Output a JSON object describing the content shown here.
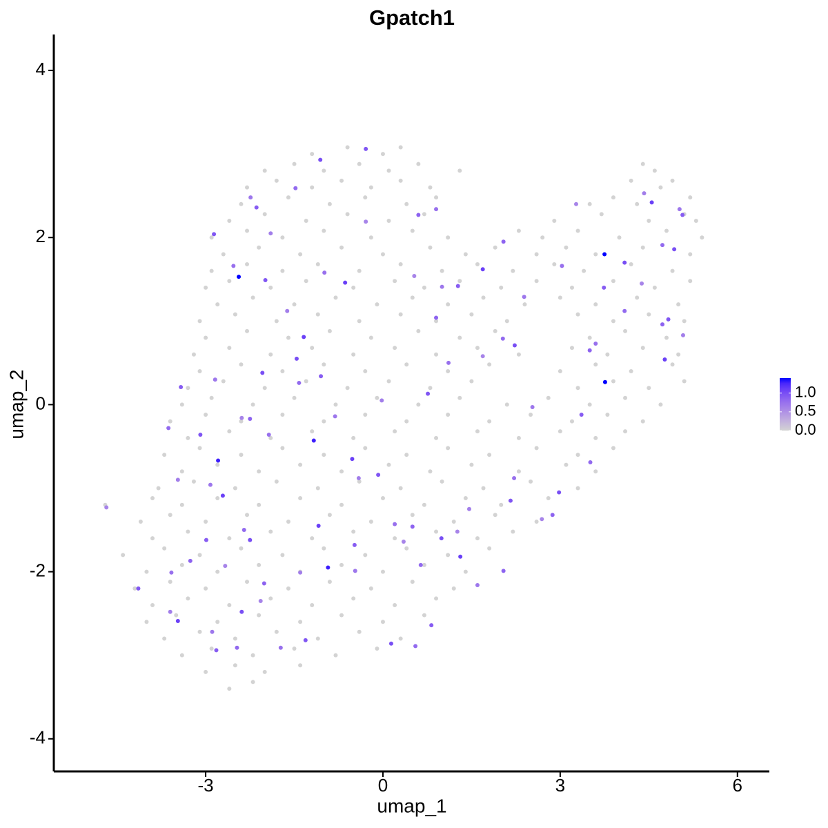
{
  "chart_data": {
    "type": "scatter",
    "title": "Gpatch1",
    "x_label": "umap_1",
    "y_label": "umap_2",
    "xlim": [
      -5.57,
      6.54
    ],
    "xticks": [
      -3,
      0,
      3,
      6
    ],
    "ylim": [
      -4.39,
      4.43
    ],
    "yticks": [
      -4,
      -2,
      0,
      2,
      4
    ],
    "color_low": "#d3d3d3",
    "color_high": "#0000ff",
    "colorbar_lim": [
      0,
      1.4
    ],
    "colorbar_ticks": [
      {
        "value": 0,
        "label": "0.0"
      },
      {
        "value": 0.5,
        "label": "0.5"
      },
      {
        "value": 1,
        "label": "1.0"
      }
    ],
    "x": [
      -1.2,
      -0.6,
      0.0,
      0.3,
      -2.0,
      -1.5,
      -1.0,
      -0.4,
      0.1,
      0.6,
      1.3,
      4.4,
      4.6,
      -2.3,
      -1.8,
      -1.2,
      -0.7,
      -0.2,
      0.3,
      0.8,
      4.2,
      4.7,
      4.9,
      -2.4,
      -1.6,
      -0.9,
      -0.3,
      0.4,
      0.9,
      3.5,
      3.9,
      4.3,
      5.2,
      -2.6,
      -2.0,
      -1.3,
      -0.6,
      0.1,
      0.7,
      2.9,
      3.7,
      4.5,
      5.1,
      5.3,
      -2.9,
      -2.3,
      -1.7,
      -1.0,
      -0.2,
      0.5,
      1.1,
      2.3,
      2.7,
      3.3,
      4.0,
      4.8,
      5.4,
      -2.7,
      -2.1,
      -1.4,
      -0.7,
      0.0,
      0.8,
      1.4,
      1.9,
      2.6,
      3.1,
      3.6,
      4.4,
      5.2,
      -2.9,
      -2.3,
      -1.7,
      -1.1,
      -0.4,
      0.3,
      1.0,
      1.6,
      2.2,
      2.9,
      3.4,
      4.2,
      4.9,
      -3.0,
      -2.6,
      -1.9,
      -1.3,
      -0.5,
      0.2,
      0.7,
      1.3,
      2.0,
      2.6,
      3.2,
      3.9,
      4.6,
      5.2,
      -2.8,
      -2.2,
      -1.5,
      -0.8,
      -0.1,
      0.5,
      1.1,
      1.7,
      2.4,
      3.0,
      3.6,
      4.3,
      5.0,
      -3.1,
      -2.5,
      -1.8,
      -1.1,
      -0.4,
      0.3,
      0.9,
      1.5,
      2.1,
      3.3,
      3.9,
      4.5,
      5.1,
      -3.0,
      -2.3,
      -1.6,
      -0.9,
      -0.2,
      0.6,
      1.3,
      1.9,
      3.5,
      4.1,
      4.8,
      -3.2,
      -2.6,
      -1.9,
      -1.2,
      -0.5,
      0.2,
      0.9,
      1.6,
      2.3,
      3.2,
      3.8,
      4.4,
      5.0,
      -3.1,
      -2.4,
      -1.7,
      -1.0,
      -0.3,
      0.4,
      1.1,
      1.8,
      3.0,
      3.6,
      4.2,
      4.9,
      -3.3,
      -2.7,
      -2.0,
      -1.3,
      -0.6,
      0.1,
      0.8,
      1.5,
      3.3,
      3.9,
      4.5,
      5.1,
      -3.4,
      -2.9,
      -2.2,
      -1.5,
      -0.8,
      -0.1,
      0.6,
      1.3,
      2.1,
      2.8,
      3.5,
      4.1,
      4.7,
      -3.6,
      -3.0,
      -2.4,
      -1.7,
      -1.0,
      -0.3,
      0.4,
      1.1,
      1.8,
      2.5,
      3.2,
      3.8,
      4.4,
      -3.3,
      -2.6,
      -1.9,
      -1.2,
      -0.5,
      0.2,
      0.9,
      1.6,
      2.3,
      3.0,
      3.6,
      4.1,
      -3.7,
      -3.1,
      -2.4,
      -1.7,
      -1.0,
      -0.3,
      0.4,
      1.1,
      1.8,
      2.6,
      3.3,
      3.9,
      -3.4,
      -2.8,
      -2.1,
      -1.4,
      -0.7,
      0.1,
      0.8,
      1.5,
      2.3,
      3.1,
      3.6,
      -3.8,
      -3.2,
      -2.5,
      -1.8,
      -1.1,
      -0.4,
      0.3,
      1.0,
      1.7,
      2.5,
      3.3,
      -4.7,
      -3.9,
      -3.4,
      -2.8,
      -2.1,
      -1.4,
      -0.7,
      0.0,
      0.7,
      1.4,
      2.0,
      2.8,
      -4.1,
      -3.6,
      -3.0,
      -2.3,
      -1.6,
      -0.9,
      -0.2,
      0.5,
      1.2,
      1.9,
      2.6,
      -3.9,
      -3.3,
      -2.6,
      -1.9,
      -1.2,
      -0.5,
      0.2,
      0.9,
      1.6,
      2.2,
      -4.4,
      -3.7,
      -3.1,
      -2.4,
      -1.7,
      -1.0,
      -0.3,
      0.4,
      1.1,
      1.8,
      -4.0,
      -3.4,
      -2.8,
      -2.1,
      -1.4,
      -0.7,
      0.0,
      0.7,
      1.4,
      -4.2,
      -3.6,
      -3.0,
      -2.3,
      -1.6,
      -0.9,
      -0.2,
      0.5,
      1.2,
      -3.9,
      -3.3,
      -2.6,
      -1.9,
      -1.2,
      -0.5,
      0.2,
      0.9,
      -4.0,
      -3.5,
      -2.8,
      -2.1,
      -1.4,
      -0.7,
      0.0,
      0.7,
      -3.7,
      -3.1,
      -2.5,
      -1.8,
      -1.1,
      -0.4,
      0.3,
      -3.4,
      -2.9,
      -2.2,
      -1.5,
      -0.8,
      -0.1,
      -3.0,
      -2.5,
      -2.0,
      -1.4,
      -2.6,
      -2.2,
      -2.24,
      -2.14,
      -1.48,
      -1.06,
      -0.29,
      0.6,
      0.9,
      -0.29,
      4.42,
      4.55,
      5.02,
      5.07,
      4.73,
      4.93,
      3.27,
      2.04,
      -2.53,
      -2.86,
      -1.9,
      -0.64,
      1.0,
      1.27,
      2.03,
      2.23,
      1.69,
      3.5,
      3.6,
      4.83,
      5.08,
      4.77,
      2.53,
      3.36,
      3.51,
      2.98,
      2.69,
      2.87,
      2.22,
      2.16,
      1.46,
      1.31,
      1.6,
      0.82,
      0.55,
      0.14,
      0.35,
      0.5,
      0.2,
      -0.08,
      -0.41,
      -0.52,
      -0.81,
      -1.05,
      -1.42,
      -1.46,
      -2.39,
      -2.25,
      -1.93,
      -3.09,
      -3.47,
      -2.71,
      -2.92,
      -2.99,
      -2.35,
      -2.25,
      -2.67,
      -3.26,
      -3.58,
      -4.14,
      -3.6,
      -3.47,
      -2.89,
      -2.82,
      -2.47,
      -2.39,
      -2.07,
      -2.01,
      -1.73,
      -1.31,
      -1.4,
      -1.09,
      -0.47,
      -0.48,
      0.64,
      0.99,
      1.26,
      2.04,
      -0.99,
      -1.99,
      -1.62,
      -1.34,
      -2.84,
      -3.42,
      -3.63,
      -2.04,
      0.53,
      0.9,
      1.11,
      0.76,
      -0.02,
      1.69,
      2.39,
      3.74,
      4.09,
      4.09,
      4.38,
      4.73,
      3.03,
      -4.68,
      -1.17,
      -2.79,
      -0.93,
      -2.44,
      3.75,
      3.76
    ],
    "y": [
      3.0,
      3.08,
      3.0,
      3.08,
      2.8,
      2.88,
      2.8,
      2.88,
      2.8,
      2.88,
      2.8,
      2.88,
      2.8,
      2.6,
      2.68,
      2.6,
      2.68,
      2.6,
      2.68,
      2.6,
      2.68,
      2.6,
      2.68,
      2.4,
      2.48,
      2.4,
      2.48,
      2.4,
      2.48,
      2.4,
      2.48,
      2.4,
      2.48,
      2.2,
      2.28,
      2.2,
      2.28,
      2.2,
      2.28,
      2.2,
      2.28,
      2.2,
      2.28,
      2.2,
      2.0,
      2.08,
      2.0,
      2.08,
      2.0,
      2.08,
      2.0,
      2.08,
      2.0,
      2.08,
      2.0,
      2.08,
      2.0,
      1.8,
      1.88,
      1.8,
      1.88,
      1.8,
      1.88,
      1.8,
      1.88,
      1.8,
      1.88,
      1.8,
      1.88,
      1.8,
      1.6,
      1.68,
      1.6,
      1.68,
      1.6,
      1.68,
      1.6,
      1.68,
      1.6,
      1.68,
      1.6,
      1.68,
      1.6,
      1.4,
      1.48,
      1.4,
      1.48,
      1.4,
      1.48,
      1.4,
      1.48,
      1.4,
      1.48,
      1.4,
      1.48,
      1.4,
      1.48,
      1.2,
      1.28,
      1.2,
      1.28,
      1.2,
      1.28,
      1.2,
      1.28,
      1.2,
      1.28,
      1.2,
      1.28,
      1.2,
      1.0,
      1.08,
      1.0,
      1.08,
      1.0,
      1.08,
      1.0,
      1.08,
      1.0,
      1.08,
      1.0,
      1.08,
      1.0,
      0.8,
      0.88,
      0.8,
      0.88,
      0.8,
      0.88,
      0.8,
      0.88,
      0.8,
      0.88,
      0.8,
      0.6,
      0.68,
      0.6,
      0.68,
      0.6,
      0.68,
      0.6,
      0.68,
      0.6,
      0.68,
      0.6,
      0.68,
      0.6,
      0.4,
      0.48,
      0.4,
      0.48,
      0.4,
      0.48,
      0.4,
      0.48,
      0.4,
      0.48,
      0.4,
      0.48,
      0.2,
      0.28,
      0.2,
      0.28,
      0.2,
      0.28,
      0.2,
      0.28,
      0.2,
      0.28,
      0.2,
      0.28,
      0.0,
      0.08,
      0.0,
      0.08,
      0.0,
      0.08,
      0.0,
      0.08,
      0.0,
      0.08,
      0.0,
      0.08,
      0.0,
      -0.2,
      -0.12,
      -0.2,
      -0.12,
      -0.2,
      -0.12,
      -0.2,
      -0.12,
      -0.2,
      -0.12,
      -0.2,
      -0.12,
      -0.2,
      -0.4,
      -0.32,
      -0.4,
      -0.32,
      -0.4,
      -0.32,
      -0.4,
      -0.32,
      -0.4,
      -0.32,
      -0.4,
      -0.32,
      -0.6,
      -0.52,
      -0.6,
      -0.52,
      -0.6,
      -0.52,
      -0.6,
      -0.52,
      -0.6,
      -0.52,
      -0.6,
      -0.52,
      -0.8,
      -0.72,
      -0.8,
      -0.72,
      -0.8,
      -0.72,
      -0.8,
      -0.72,
      -0.8,
      -0.72,
      -0.8,
      -1.0,
      -0.92,
      -1.0,
      -0.92,
      -1.0,
      -0.92,
      -1.0,
      -0.92,
      -1.0,
      -0.92,
      -1.0,
      -1.2,
      -1.12,
      -1.2,
      -1.12,
      -1.2,
      -1.12,
      -1.2,
      -1.12,
      -1.2,
      -1.12,
      -1.2,
      -1.12,
      -1.4,
      -1.32,
      -1.4,
      -1.32,
      -1.4,
      -1.32,
      -1.4,
      -1.32,
      -1.4,
      -1.32,
      -1.4,
      -1.6,
      -1.52,
      -1.6,
      -1.52,
      -1.6,
      -1.52,
      -1.6,
      -1.52,
      -1.6,
      -1.52,
      -1.8,
      -1.72,
      -1.8,
      -1.72,
      -1.8,
      -1.72,
      -1.8,
      -1.72,
      -1.8,
      -1.72,
      -2.0,
      -1.92,
      -2.0,
      -1.92,
      -2.0,
      -1.92,
      -2.0,
      -1.92,
      -2.0,
      -2.2,
      -2.12,
      -2.2,
      -2.12,
      -2.2,
      -2.12,
      -2.2,
      -2.12,
      -2.2,
      -2.4,
      -2.32,
      -2.4,
      -2.32,
      -2.4,
      -2.32,
      -2.4,
      -2.32,
      -2.6,
      -2.52,
      -2.6,
      -2.52,
      -2.6,
      -2.52,
      -2.6,
      -2.52,
      -2.8,
      -2.72,
      -2.8,
      -2.72,
      -2.8,
      -2.72,
      -2.8,
      -3.0,
      -2.92,
      -3.0,
      -2.92,
      -3.0,
      -2.92,
      -3.2,
      -3.12,
      -3.2,
      -3.12,
      -3.4,
      -3.32,
      2.48,
      2.36,
      2.59,
      2.93,
      2.19,
      2.27,
      2.34,
      3.06,
      2.53,
      2.42,
      2.34,
      2.27,
      1.91,
      1.86,
      2.4,
      1.95,
      1.66,
      2.04,
      2.05,
      1.46,
      1.41,
      1.42,
      0.79,
      0.71,
      0.58,
      0.65,
      0.73,
      1.02,
      0.83,
      0.54,
      -0.03,
      -0.12,
      -0.69,
      -1.05,
      -1.37,
      -1.32,
      -0.88,
      -1.15,
      -1.25,
      -1.82,
      -2.16,
      -2.64,
      -2.89,
      -2.86,
      -1.64,
      -1.46,
      -1.43,
      -0.84,
      -0.88,
      -0.65,
      -0.14,
      0.34,
      0.26,
      0.55,
      -0.16,
      -0.17,
      -0.36,
      -0.36,
      -0.9,
      -1.09,
      -0.96,
      -1.62,
      -1.5,
      -1.62,
      -1.93,
      -1.87,
      -2.01,
      -2.2,
      -2.48,
      -2.59,
      -2.72,
      -2.94,
      -2.91,
      -2.48,
      -2.35,
      -2.14,
      -2.91,
      -2.82,
      -2.01,
      -1.45,
      -1.99,
      -1.68,
      -1.92,
      -1.6,
      -1.52,
      -1.99,
      1.58,
      1.49,
      1.12,
      0.81,
      0.3,
      0.21,
      -0.28,
      0.38,
      1.54,
      1.04,
      0.5,
      0.13,
      0.05,
      1.62,
      1.29,
      1.4,
      1.12,
      1.7,
      1.45,
      0.96,
      1.66,
      -1.23,
      -0.43,
      -0.67,
      -1.95,
      1.53,
      1.8,
      0.27
    ],
    "values": [
      0,
      0,
      0,
      0,
      0,
      0,
      0,
      0,
      0,
      0,
      0,
      0,
      0,
      0,
      0,
      0,
      0,
      0,
      0,
      0,
      0,
      0,
      0,
      0,
      0,
      0,
      0,
      0,
      0,
      0,
      0,
      0,
      0,
      0,
      0,
      0,
      0,
      0,
      0,
      0,
      0,
      0,
      0,
      0,
      0,
      0,
      0,
      0,
      0,
      0,
      0,
      0,
      0,
      0,
      0,
      0,
      0,
      0,
      0,
      0,
      0,
      0,
      0,
      0,
      0,
      0,
      0,
      0,
      0,
      0,
      0,
      0,
      0,
      0,
      0,
      0,
      0,
      0,
      0,
      0,
      0,
      0,
      0,
      0,
      0,
      0,
      0,
      0,
      0,
      0,
      0,
      0,
      0,
      0,
      0,
      0,
      0,
      0,
      0,
      0,
      0,
      0,
      0,
      0,
      0,
      0,
      0,
      0,
      0,
      0,
      0,
      0,
      0,
      0,
      0,
      0,
      0,
      0,
      0,
      0,
      0,
      0,
      0,
      0,
      0,
      0,
      0,
      0,
      0,
      0,
      0,
      0,
      0,
      0,
      0,
      0,
      0,
      0,
      0,
      0,
      0,
      0,
      0,
      0,
      0,
      0,
      0,
      0,
      0,
      0,
      0,
      0,
      0,
      0,
      0,
      0,
      0,
      0,
      0,
      0,
      0,
      0,
      0,
      0,
      0,
      0,
      0,
      0,
      0,
      0,
      0,
      0,
      0,
      0,
      0,
      0,
      0,
      0,
      0,
      0,
      0,
      0,
      0,
      0,
      0,
      0,
      0,
      0,
      0,
      0,
      0,
      0,
      0,
      0,
      0,
      0,
      0,
      0,
      0,
      0,
      0,
      0,
      0,
      0,
      0,
      0,
      0,
      0,
      0,
      0,
      0,
      0,
      0,
      0,
      0,
      0,
      0,
      0,
      0,
      0,
      0,
      0,
      0,
      0,
      0,
      0,
      0,
      0,
      0,
      0,
      0,
      0,
      0,
      0,
      0,
      0,
      0,
      0,
      0,
      0,
      0,
      0,
      0,
      0,
      0,
      0,
      0,
      0,
      0,
      0,
      0,
      0,
      0,
      0,
      0,
      0,
      0,
      0,
      0,
      0,
      0,
      0,
      0,
      0,
      0,
      0,
      0,
      0,
      0,
      0,
      0,
      0,
      0,
      0,
      0,
      0,
      0,
      0,
      0,
      0,
      0,
      0,
      0,
      0,
      0,
      0,
      0,
      0,
      0,
      0,
      0,
      0,
      0,
      0,
      0,
      0,
      0,
      0,
      0,
      0,
      0,
      0,
      0,
      0,
      0,
      0,
      0,
      0,
      0,
      0,
      0,
      0,
      0,
      0,
      0,
      0,
      0,
      0,
      0,
      0,
      0,
      0,
      0,
      0,
      0,
      0,
      0,
      0,
      0,
      0,
      0,
      0,
      0,
      0,
      0,
      0,
      0,
      0,
      0,
      0.7,
      0.9,
      0.8,
      1.0,
      0.6,
      0.85,
      0.75,
      0.95,
      0.65,
      1.1,
      0.7,
      0.9,
      0.8,
      1.0,
      0.6,
      0.85,
      0.75,
      0.95,
      0.65,
      1.1,
      0.7,
      0.9,
      0.8,
      1.0,
      0.6,
      0.85,
      0.75,
      0.95,
      0.65,
      1.1,
      0.7,
      0.9,
      0.8,
      1.0,
      0.6,
      0.85,
      0.75,
      0.95,
      0.65,
      1.1,
      0.7,
      0.9,
      0.8,
      1.0,
      0.6,
      0.85,
      0.75,
      0.95,
      0.65,
      1.1,
      0.7,
      0.9,
      0.8,
      1.0,
      0.6,
      0.85,
      0.75,
      0.95,
      0.65,
      1.1,
      0.7,
      0.9,
      0.8,
      1.0,
      0.6,
      0.85,
      0.75,
      0.95,
      0.65,
      1.1,
      0.7,
      0.9,
      0.8,
      1.0,
      0.6,
      0.85,
      0.75,
      0.95,
      0.65,
      1.1,
      0.7,
      0.9,
      0.8,
      1.0,
      0.6,
      0.85,
      0.75,
      0.95,
      0.65,
      1.1,
      0.7,
      0.9,
      0.8,
      1.0,
      0.6,
      0.85,
      0.75,
      0.95,
      0.65,
      1.1,
      0.7,
      0.9,
      0.8,
      1.0,
      0.6,
      0.85,
      0.75,
      0.6,
      1.3,
      1.3,
      1.3,
      1.4,
      1.4,
      1.4
    ]
  }
}
